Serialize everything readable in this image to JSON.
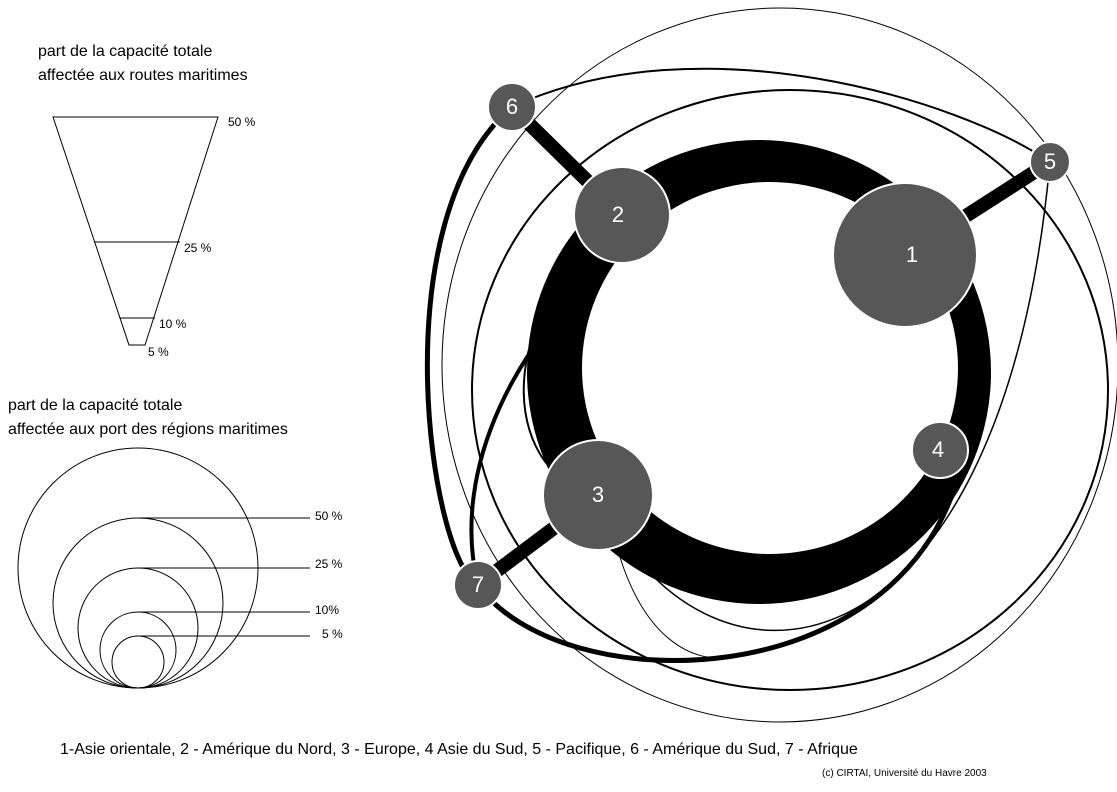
{
  "legend_routes": {
    "title_lines": [
      "part de la capacité totale",
      "affectée aux routes maritimes"
    ],
    "levels": [
      "50 %",
      "25 %",
      "10 %",
      "5 %"
    ]
  },
  "legend_ports": {
    "title_lines": [
      "part de la capacité totale",
      "affectée aux port des régions maritimes"
    ],
    "levels": [
      "50 %",
      "25 %",
      "10%",
      "5 %"
    ]
  },
  "nodes": [
    {
      "label": "1"
    },
    {
      "label": "2"
    },
    {
      "label": "3"
    },
    {
      "label": "4"
    },
    {
      "label": "5"
    },
    {
      "label": "6"
    },
    {
      "label": "7"
    }
  ],
  "caption": "1-Asie  orientale, 2 - Amérique du Nord, 3 - Europe, 4 Asie du Sud, 5 - Pacifique, 6 - Amérique  du Sud, 7 - Afrique",
  "copyright": "(c) CIRTAI, Université du Havre 2003"
}
